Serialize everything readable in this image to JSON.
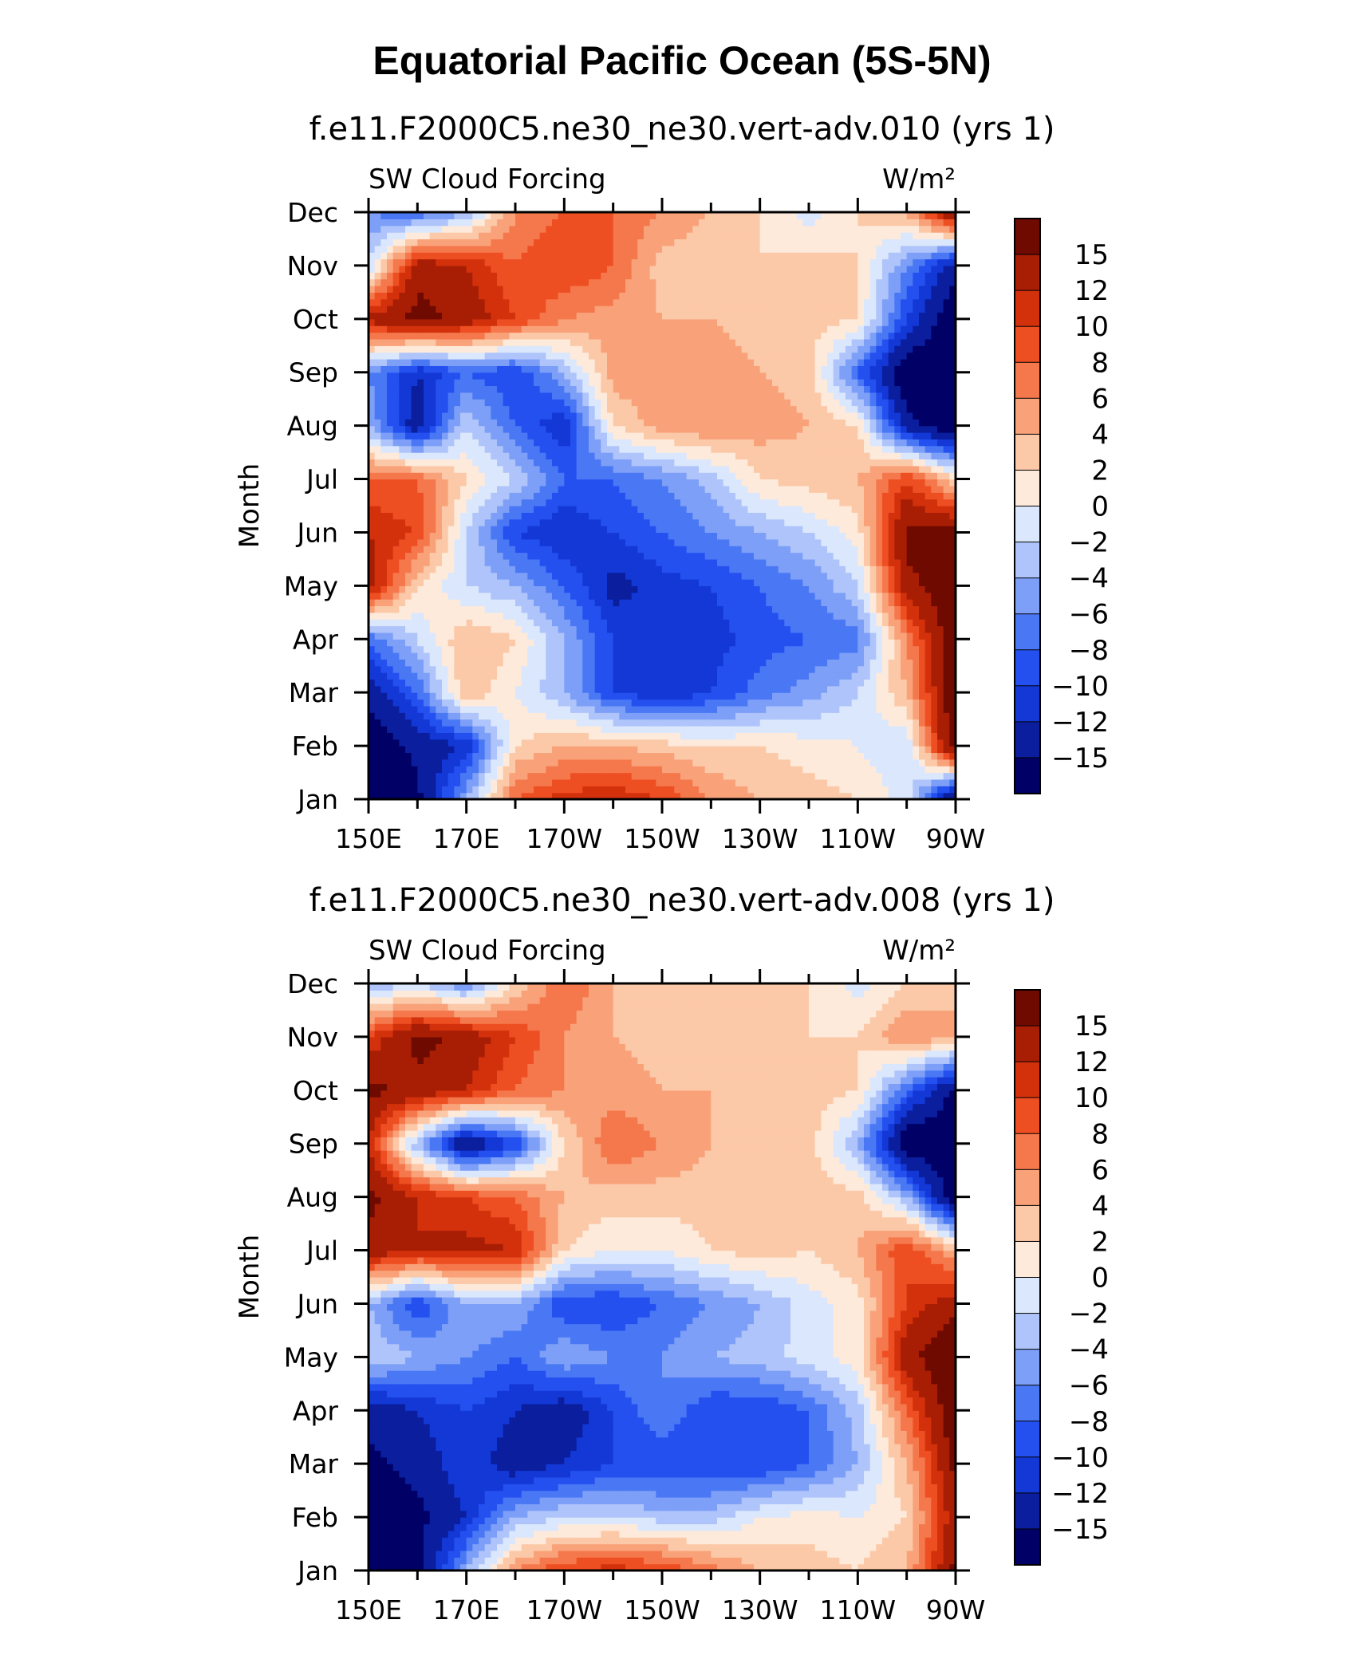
{
  "figure_title": "Equatorial Pacific Ocean (5S-5N)",
  "colors": {
    "palette": [
      "#000066",
      "#0a1e9e",
      "#1338d6",
      "#2450f0",
      "#4a78f5",
      "#7d9ff7",
      "#aec4fa",
      "#dbe7fc",
      "#fdeadb",
      "#fcc9a8",
      "#f9a27a",
      "#f5784d",
      "#ee4f22",
      "#d3310c",
      "#a81e05",
      "#6e0a00"
    ],
    "frame": "#000000",
    "background": "#ffffff"
  },
  "chart_data": [
    {
      "type": "heatmap",
      "title": "f.e11.F2000C5.ne30_ne30.vert-adv.010 (yrs 1)",
      "left_label": "SW Cloud Forcing",
      "units_label": "W/m²",
      "ylabel": "Month",
      "xlabel": "",
      "x_ticklabels": [
        "150E",
        "170E",
        "170W",
        "150W",
        "130W",
        "110W",
        "90W"
      ],
      "x_range": [
        150,
        270
      ],
      "y_ticklabels": [
        "Jan",
        "Feb",
        "Mar",
        "Apr",
        "May",
        "Jun",
        "Jul",
        "Aug",
        "Sep",
        "Oct",
        "Nov",
        "Dec"
      ],
      "colorbar_labels": [
        "15",
        "12",
        "10",
        "8",
        "6",
        "4",
        "2",
        "0",
        "−2",
        "−4",
        "−6",
        "−8",
        "−10",
        "−12",
        "−15"
      ],
      "levels": [
        -15,
        -12,
        -10,
        -8,
        -6,
        -4,
        -2,
        0,
        2,
        4,
        6,
        8,
        10,
        12,
        15
      ],
      "longitudes": [
        150,
        160,
        170,
        180,
        190,
        200,
        210,
        220,
        230,
        240,
        250,
        260,
        270
      ],
      "values": [
        [
          -18,
          -16,
          -4,
          8,
          11,
          12,
          10,
          6,
          4,
          3,
          2,
          -1,
          -18
        ],
        [
          -18,
          -14,
          -12,
          2,
          4,
          4,
          3,
          2,
          2,
          1,
          0,
          -2,
          18
        ],
        [
          -14,
          -8,
          4,
          0,
          -4,
          -10,
          -12,
          -10,
          -7,
          -5,
          -2,
          4,
          18
        ],
        [
          -8,
          -2,
          4,
          2,
          -4,
          -10,
          -12,
          -11,
          -9,
          -8,
          -7,
          6,
          18
        ],
        [
          14,
          2,
          -2,
          -4,
          -8,
          -13,
          -11,
          -10,
          -8,
          -6,
          -2,
          14,
          18
        ],
        [
          12,
          10,
          -2,
          -10,
          -12,
          -10,
          -8,
          -6,
          -4,
          -2,
          1,
          16,
          16
        ],
        [
          8,
          8,
          2,
          -2,
          -8,
          -8,
          -6,
          -3,
          2,
          3,
          4,
          10,
          2
        ],
        [
          -4,
          -14,
          -2,
          -8,
          -12,
          2,
          5,
          6,
          5,
          4,
          2,
          -14,
          -18
        ],
        [
          -6,
          -12,
          -8,
          -10,
          -4,
          5,
          6,
          5,
          4,
          3,
          -8,
          -18,
          -18
        ],
        [
          13,
          16,
          14,
          10,
          6,
          5,
          4,
          4,
          3,
          3,
          2,
          -10,
          -18
        ],
        [
          -2,
          14,
          12,
          8,
          10,
          8,
          3,
          2,
          2,
          3,
          2,
          -6,
          -14
        ],
        [
          -6,
          -8,
          -4,
          6,
          8,
          8,
          6,
          4,
          2,
          -1,
          2,
          4,
          16
        ]
      ]
    },
    {
      "type": "heatmap",
      "title": "f.e11.F2000C5.ne30_ne30.vert-adv.008 (yrs 1)",
      "left_label": "SW Cloud Forcing",
      "units_label": "W/m²",
      "ylabel": "Month",
      "xlabel": "",
      "x_ticklabels": [
        "150E",
        "170E",
        "170W",
        "150W",
        "130W",
        "110W",
        "90W"
      ],
      "x_range": [
        150,
        270
      ],
      "y_ticklabels": [
        "Jan",
        "Feb",
        "Mar",
        "Apr",
        "May",
        "Jun",
        "Jul",
        "Aug",
        "Sep",
        "Oct",
        "Nov",
        "Dec"
      ],
      "colorbar_labels": [
        "15",
        "12",
        "10",
        "8",
        "6",
        "4",
        "2",
        "0",
        "−2",
        "−4",
        "−6",
        "−8",
        "−10",
        "−12",
        "−15"
      ],
      "levels": [
        -15,
        -12,
        -10,
        -8,
        -6,
        -4,
        -2,
        0,
        2,
        4,
        6,
        8,
        10,
        12,
        15
      ],
      "longitudes": [
        150,
        160,
        170,
        180,
        190,
        200,
        210,
        220,
        230,
        240,
        250,
        260,
        270
      ],
      "values": [
        [
          -18,
          -16,
          -4,
          6,
          10,
          11,
          10,
          7,
          4,
          3,
          2,
          4,
          16
        ],
        [
          -18,
          -16,
          -12,
          -4,
          -2,
          -2,
          -3,
          -3,
          0,
          1,
          0,
          2,
          14
        ],
        [
          -16,
          -14,
          -10,
          -14,
          -12,
          -10,
          -10,
          -10,
          -10,
          -8,
          -4,
          4,
          16
        ],
        [
          -14,
          -12,
          -10,
          -12,
          -14,
          -10,
          -6,
          -10,
          -10,
          -8,
          -3,
          8,
          18
        ],
        [
          -2,
          -4,
          -6,
          -8,
          -4,
          -6,
          -6,
          -4,
          -3,
          -1,
          1,
          14,
          18
        ],
        [
          -4,
          -10,
          -4,
          -4,
          -10,
          -10,
          -8,
          -6,
          -4,
          -1,
          1,
          10,
          14
        ],
        [
          14,
          12,
          13,
          12,
          2,
          0,
          0,
          2,
          3,
          2,
          4,
          10,
          4
        ],
        [
          16,
          12,
          10,
          8,
          4,
          3,
          3,
          3,
          3,
          3,
          3,
          -4,
          -18
        ],
        [
          12,
          -4,
          -16,
          -10,
          2,
          8,
          6,
          4,
          4,
          3,
          -4,
          -18,
          -18
        ],
        [
          16,
          14,
          12,
          8,
          6,
          5,
          4,
          4,
          3,
          3,
          2,
          -8,
          -16
        ],
        [
          10,
          16,
          14,
          10,
          6,
          4,
          3,
          2,
          2,
          2,
          2,
          6,
          4
        ],
        [
          -4,
          -2,
          -6,
          2,
          8,
          4,
          3,
          2,
          2,
          2,
          -1,
          2,
          4
        ]
      ]
    }
  ]
}
